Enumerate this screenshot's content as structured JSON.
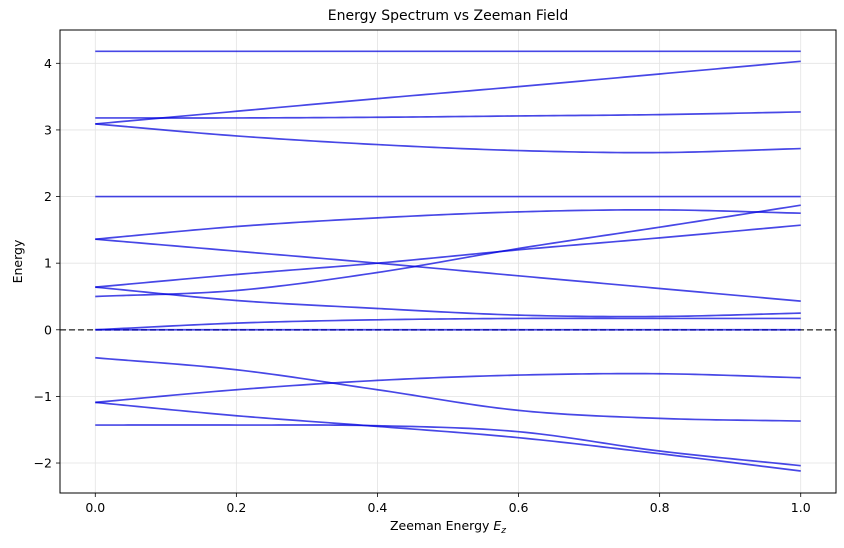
{
  "chart_data": {
    "type": "line",
    "title": "Energy Spectrum vs Zeeman Field",
    "xlabel": "Zeeman Energy ",
    "xlabel_symbol": "E",
    "xlabel_subscript": "z",
    "ylabel": "Energy",
    "xlim": [
      -0.05,
      1.05
    ],
    "ylim": [
      -2.45,
      4.5
    ],
    "xticks": [
      0.0,
      0.2,
      0.4,
      0.6,
      0.8,
      1.0
    ],
    "xtick_labels": [
      "0.0",
      "0.2",
      "0.4",
      "0.6",
      "0.8",
      "1.0"
    ],
    "yticks": [
      -2,
      -1,
      0,
      1,
      2,
      3,
      4
    ],
    "ytick_labels": [
      "−2",
      "−1",
      "0",
      "1",
      "2",
      "3",
      "4"
    ],
    "grid": true,
    "line_color": "#0000dd",
    "reference_line": {
      "y": 0,
      "style": "dashed",
      "color": "#555555"
    },
    "series": [
      {
        "x": [
          0,
          0.2,
          0.4,
          0.6,
          0.8,
          1.0
        ],
        "values": [
          4.18,
          4.18,
          4.18,
          4.18,
          4.18,
          4.18
        ]
      },
      {
        "x": [
          0,
          0.2,
          0.4,
          0.6,
          0.8,
          1.0
        ],
        "values": [
          3.09,
          3.28,
          3.47,
          3.65,
          3.84,
          4.03
        ]
      },
      {
        "x": [
          0,
          0.2,
          0.4,
          0.6,
          0.8,
          1.0
        ],
        "values": [
          3.18,
          3.18,
          3.19,
          3.21,
          3.23,
          3.27
        ]
      },
      {
        "x": [
          0,
          0.2,
          0.4,
          0.6,
          0.8,
          1.0
        ],
        "values": [
          3.09,
          2.91,
          2.78,
          2.69,
          2.66,
          2.72
        ]
      },
      {
        "x": [
          0,
          0.2,
          0.4,
          0.6,
          0.8,
          1.0
        ],
        "values": [
          2.0,
          2.0,
          2.0,
          2.0,
          2.0,
          2.0
        ]
      },
      {
        "x": [
          0,
          0.2,
          0.4,
          0.6,
          0.8,
          1.0
        ],
        "values": [
          1.36,
          1.55,
          1.68,
          1.77,
          1.8,
          1.75
        ]
      },
      {
        "x": [
          0,
          0.2,
          0.4,
          0.6,
          0.8,
          1.0
        ],
        "values": [
          0.5,
          0.59,
          0.86,
          1.22,
          1.54,
          1.87
        ]
      },
      {
        "x": [
          0,
          0.2,
          0.4,
          0.6,
          0.8,
          1.0
        ],
        "values": [
          0.64,
          0.83,
          1.0,
          1.2,
          1.38,
          1.57
        ]
      },
      {
        "x": [
          0,
          0.2,
          0.4,
          0.6,
          0.8,
          1.0
        ],
        "values": [
          1.36,
          1.18,
          1.0,
          0.81,
          0.62,
          0.43
        ]
      },
      {
        "x": [
          0,
          0.2,
          0.4,
          0.6,
          0.8,
          1.0
        ],
        "values": [
          0.64,
          0.44,
          0.32,
          0.22,
          0.2,
          0.25
        ]
      },
      {
        "x": [
          0,
          0.2,
          0.4,
          0.6,
          0.8,
          1.0
        ],
        "values": [
          0.0,
          0.1,
          0.15,
          0.17,
          0.17,
          0.17
        ]
      },
      {
        "x": [
          0,
          0.2,
          0.4,
          0.6,
          0.8,
          1.0
        ],
        "values": [
          0.0,
          0.0,
          0.0,
          0.0,
          0.0,
          0.0
        ]
      },
      {
        "x": [
          0,
          0.2,
          0.4,
          0.6,
          0.8,
          1.0
        ],
        "values": [
          -0.42,
          -0.6,
          -0.9,
          -1.21,
          -1.33,
          -1.37
        ]
      },
      {
        "x": [
          0,
          0.2,
          0.4,
          0.6,
          0.8,
          1.0
        ],
        "values": [
          -1.09,
          -0.9,
          -0.76,
          -0.68,
          -0.66,
          -0.72
        ]
      },
      {
        "x": [
          0,
          0.2,
          0.4,
          0.6,
          0.8,
          1.0
        ],
        "values": [
          -1.09,
          -1.29,
          -1.45,
          -1.62,
          -1.86,
          -2.12
        ]
      },
      {
        "x": [
          0,
          0.2,
          0.4,
          0.6,
          0.8,
          1.0
        ],
        "values": [
          -1.43,
          -1.43,
          -1.44,
          -1.53,
          -1.82,
          -2.04
        ]
      }
    ]
  }
}
